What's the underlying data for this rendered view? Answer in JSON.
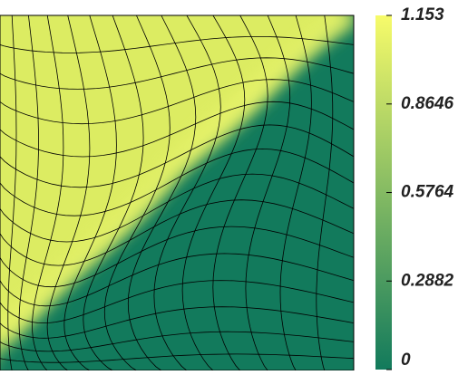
{
  "chart_data": {
    "type": "heatmap",
    "colors": [
      "#127a5c",
      "#f7fb6a"
    ],
    "zlim": [
      0,
      1.153
    ],
    "zticks": [
      0,
      0.2882,
      0.5764,
      0.8646,
      1.153
    ]
  }
}
